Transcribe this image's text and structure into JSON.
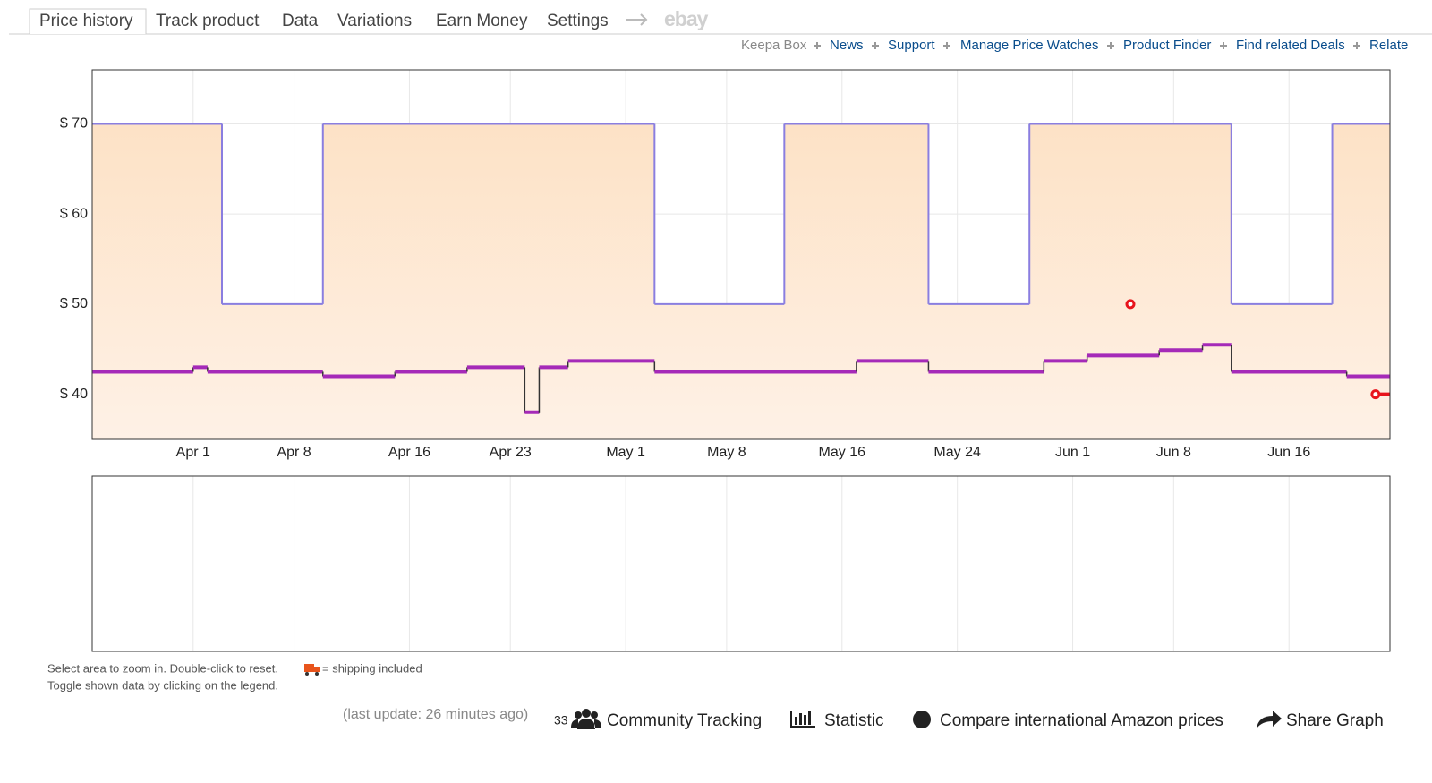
{
  "tabs": [
    "Price history",
    "Track product",
    "Data",
    "Variations",
    "Earn Money",
    "Settings"
  ],
  "ebay": "ebay",
  "links": [
    "Keepa Box",
    "News",
    "Support",
    "Manage Price Watches",
    "Product Finder",
    "Find related Deals",
    "Relate"
  ],
  "chart_data": {
    "type": "step",
    "xlim": [
      "Mar 25",
      "Jun 23"
    ],
    "xticks": [
      "Apr 1",
      "Apr 8",
      "Apr 16",
      "Apr 23",
      "May 1",
      "May 8",
      "May 16",
      "May 24",
      "Jun 1",
      "Jun 8",
      "Jun 16"
    ],
    "ylim": [
      35,
      76
    ],
    "yticks": [
      {
        "value": 40,
        "label": "$ 40"
      },
      {
        "value": 50,
        "label": "$ 50"
      },
      {
        "value": 60,
        "label": "$ 60"
      },
      {
        "value": 70,
        "label": "$ 70"
      }
    ],
    "grid": true,
    "series": [
      {
        "color": "#8a7ee0",
        "fill": true,
        "x": [
          "Mar 25",
          "Apr 3",
          "Apr 10",
          "May 3",
          "May 12",
          "May 22",
          "May 29",
          "Jun 12",
          "Jun 19",
          "Jun 23"
        ],
        "values": [
          70,
          50,
          70,
          50,
          70,
          50,
          70,
          50,
          70,
          70
        ]
      },
      {
        "color": "#a52ab8",
        "x": [
          "Mar 25",
          "Apr 1",
          "Apr 2",
          "Apr 10",
          "Apr 15",
          "Apr 20",
          "Apr 24",
          "Apr 25",
          "Apr 27",
          "May 3",
          "May 17",
          "May 22",
          "May 30",
          "Jun 2",
          "Jun 7",
          "Jun 10",
          "Jun 12",
          "Jun 20",
          "Jun 23"
        ],
        "values": [
          42.5,
          43,
          42.5,
          42,
          42.5,
          43,
          38,
          43,
          43.7,
          42.5,
          43.7,
          42.5,
          43.7,
          44.3,
          44.9,
          45.5,
          42.5,
          42,
          42
        ]
      },
      {
        "color": "#e8141c",
        "x": [
          "Jun 5",
          "Jun 6",
          "Jun 22",
          "Jun 23"
        ],
        "values": [
          50,
          null,
          40,
          40
        ]
      }
    ]
  },
  "footer": {
    "hint_zoom": "Select area to zoom in. Double-click to reset.",
    "shipping": "= shipping included",
    "hint_toggle": "Toggle shown data by clicking on the legend.",
    "last_update": "(last update: 26 minutes ago)",
    "tracker_count": "33",
    "actions": [
      "Community Tracking",
      "Statistic",
      "Compare international Amazon prices",
      "Share Graph"
    ]
  }
}
